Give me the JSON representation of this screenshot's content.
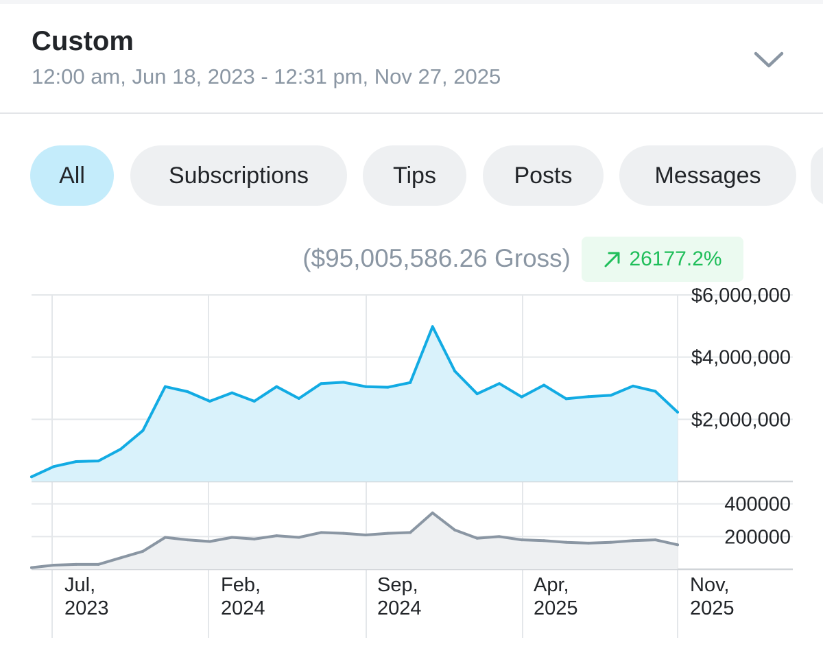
{
  "header": {
    "title": "Custom",
    "date_range": "12:00 am, Jun 18, 2023 - 12:31 pm, Nov 27, 2025",
    "toggle_icon": "chevron-down-icon"
  },
  "filters": {
    "tabs": [
      {
        "label": "All",
        "active": true
      },
      {
        "label": "Subscriptions",
        "active": false
      },
      {
        "label": "Tips",
        "active": false
      },
      {
        "label": "Posts",
        "active": false
      },
      {
        "label": "Messages",
        "active": false
      }
    ]
  },
  "summary": {
    "gross_label": "($95,005,586.26 Gross)",
    "change_label": "26177.2%",
    "change_icon": "arrow-up-right-icon",
    "change_color": "#1fbe5a"
  },
  "colors": {
    "earnings_line": "#12abe3",
    "earnings_fill": "#d9f2fb",
    "count_line": "#8a96a3",
    "count_fill": "#eef0f2",
    "grid": "#e4e7ea",
    "active_tab": "#c4ecfb"
  },
  "chart_data": [
    {
      "type": "area",
      "x": [
        "Jun 2023",
        "Jul 2023",
        "Aug 2023",
        "Sep 2023",
        "Oct 2023",
        "Nov 2023",
        "Dec 2023",
        "Jan 2024",
        "Feb 2024",
        "Mar 2024",
        "Apr 2024",
        "May 2024",
        "Jun 2024",
        "Jul 2024",
        "Aug 2024",
        "Sep 2024",
        "Oct 2024",
        "Nov 2024",
        "Dec 2024",
        "Jan 2025",
        "Feb 2025",
        "Mar 2025",
        "Apr 2025",
        "May 2025",
        "Jun 2025",
        "Jul 2025",
        "Aug 2025",
        "Sep 2025",
        "Oct 2025",
        "Nov 2025"
      ],
      "series": [
        {
          "values": [
            150000,
            480000,
            640000,
            660000,
            1040000,
            1640000,
            3050000,
            2890000,
            2580000,
            2850000,
            2580000,
            3050000,
            2670000,
            3150000,
            3190000,
            3050000,
            3030000,
            3180000,
            4980000,
            3550000,
            2820000,
            3150000,
            2720000,
            3100000,
            2660000,
            2730000,
            2770000,
            3070000,
            2900000,
            2230000
          ]
        }
      ],
      "x_ticks": [
        "Jul, 2023",
        "Feb, 2024",
        "Sep, 2024",
        "Apr, 2025",
        "Nov, 2025"
      ],
      "y_ticks": [
        "$2,000,000",
        "$4,000,000",
        "$6,000,000"
      ],
      "ylim": [
        0,
        6000000
      ],
      "grid": true
    },
    {
      "type": "area",
      "x": [
        "Jun 2023",
        "Jul 2023",
        "Aug 2023",
        "Sep 2023",
        "Oct 2023",
        "Nov 2023",
        "Dec 2023",
        "Jan 2024",
        "Feb 2024",
        "Mar 2024",
        "Apr 2024",
        "May 2024",
        "Jun 2024",
        "Jul 2024",
        "Aug 2024",
        "Sep 2024",
        "Oct 2024",
        "Nov 2024",
        "Dec 2024",
        "Jan 2025",
        "Feb 2025",
        "Mar 2025",
        "Apr 2025",
        "May 2025",
        "Jun 2025",
        "Jul 2025",
        "Aug 2025",
        "Sep 2025",
        "Oct 2025",
        "Nov 2025"
      ],
      "series": [
        {
          "values": [
            10000,
            25000,
            30000,
            30000,
            70000,
            110000,
            195000,
            180000,
            170000,
            195000,
            185000,
            205000,
            195000,
            225000,
            220000,
            210000,
            220000,
            225000,
            345000,
            240000,
            190000,
            200000,
            180000,
            175000,
            165000,
            160000,
            165000,
            175000,
            180000,
            150000
          ]
        }
      ],
      "y_ticks": [
        "200000",
        "400000"
      ],
      "ylim": [
        0,
        470000
      ],
      "grid": true
    }
  ]
}
